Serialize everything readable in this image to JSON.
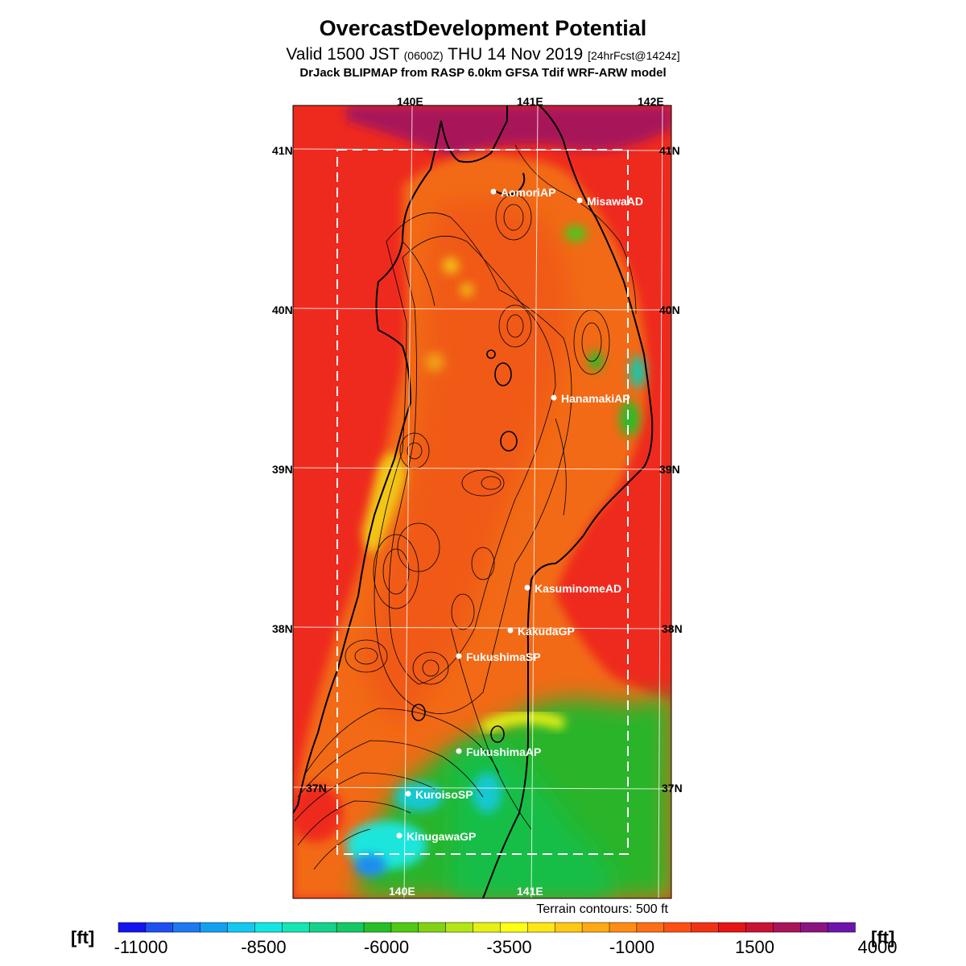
{
  "title": "OvercastDevelopment Potential",
  "subtitle": {
    "valid": "Valid 1500 JST",
    "zulu": "(0600Z)",
    "date": "THU 14 Nov 2019",
    "forecast": "[24hrFcst@1424z]"
  },
  "model": "DrJack BLIPMAP from RASP 6.0km GFSA Tdif WRF-ARW model",
  "terrain_note": "Terrain contours: 500 ft",
  "grid": {
    "lon_top": [
      "140E",
      "141E",
      "142E"
    ],
    "lon_bottom": [
      "140E",
      "141E"
    ],
    "lat_left": [
      "41N",
      "40N",
      "39N",
      "38N",
      "37N"
    ],
    "lat_right": [
      "41N",
      "40N",
      "39N",
      "38N",
      "37N"
    ]
  },
  "stations": [
    {
      "name": "AomoriAP"
    },
    {
      "name": "MisawaAD"
    },
    {
      "name": "HanamakiAP"
    },
    {
      "name": "KasuminomeAD"
    },
    {
      "name": "KakudaGP"
    },
    {
      "name": "FukushimaSP"
    },
    {
      "name": "FukushimaAP"
    },
    {
      "name": "KuroisoSP"
    },
    {
      "name": "KinugawaGP"
    }
  ],
  "colorbar": {
    "unit": "[ft]",
    "labels": [
      "-11000",
      "-8500",
      "-6000",
      "-3500",
      "-1000",
      "1500",
      "4000"
    ],
    "colors": [
      "#1414f0",
      "#1e50f0",
      "#1e78f0",
      "#14a0f0",
      "#14c8f0",
      "#14e6e6",
      "#14e6b4",
      "#14d28c",
      "#14c864",
      "#28be28",
      "#50c814",
      "#82d214",
      "#b4e614",
      "#e6f014",
      "#ffff14",
      "#ffe614",
      "#ffc814",
      "#ffaa14",
      "#ff8c14",
      "#ff6e14",
      "#ff5014",
      "#f03214",
      "#e61414",
      "#c81432",
      "#aa145a",
      "#8c1482",
      "#6e14aa"
    ]
  },
  "colors": {
    "sea_red": "#ee2a1e",
    "orange": "#f26a18",
    "yellow": "#f2c614",
    "green": "#2ab42a",
    "cyan": "#1ee6dc",
    "purple": "#9a1458"
  }
}
